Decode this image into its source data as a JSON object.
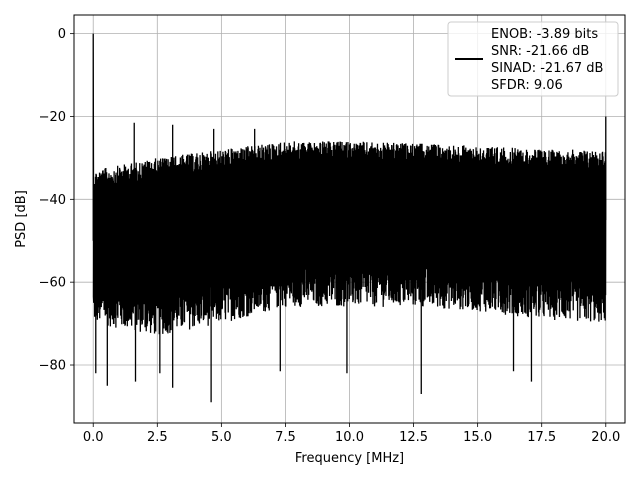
{
  "chart_data": {
    "type": "line",
    "xlabel": "Frequency [MHz]",
    "ylabel": "PSD [dB]",
    "xlim": [
      -0.75,
      20.75
    ],
    "ylim": [
      -94,
      4.5
    ],
    "xticks": [
      0.0,
      2.5,
      5.0,
      7.5,
      10.0,
      12.5,
      15.0,
      17.5,
      20.0
    ],
    "xtick_labels": [
      "0.0",
      "2.5",
      "5.0",
      "7.5",
      "10.0",
      "12.5",
      "15.0",
      "17.5",
      "20.0"
    ],
    "yticks": [
      0,
      -20,
      -40,
      -60,
      -80
    ],
    "ytick_labels": [
      "0",
      "−20",
      "−40",
      "−60",
      "−80"
    ],
    "grid": true,
    "legend_position": "top-right",
    "series": [
      {
        "color": "#000000",
        "description_points": {
          "dc_peak": [
            0.0,
            0.0
          ],
          "upper_envelope": [
            [
              0.0,
              -33
            ],
            [
              2.5,
              -30
            ],
            [
              5.0,
              -28
            ],
            [
              7.5,
              -26
            ],
            [
              10.0,
              -26
            ],
            [
              12.5,
              -26.5
            ],
            [
              15.0,
              -27
            ],
            [
              17.5,
              -28
            ],
            [
              20.0,
              -28
            ]
          ],
          "lower_envelope": [
            [
              0.0,
              -70
            ],
            [
              2.5,
              -73
            ],
            [
              5.0,
              -70
            ],
            [
              7.5,
              -66
            ],
            [
              10.0,
              -66
            ],
            [
              12.5,
              -66
            ],
            [
              15.0,
              -67
            ],
            [
              17.5,
              -69
            ],
            [
              20.0,
              -70
            ]
          ],
          "spurs": [
            [
              1.6,
              -21.5
            ],
            [
              3.1,
              -22
            ],
            [
              4.7,
              -23
            ],
            [
              6.3,
              -23
            ],
            [
              20.0,
              -20
            ]
          ],
          "dips": [
            [
              0.1,
              -82
            ],
            [
              0.55,
              -85
            ],
            [
              1.65,
              -84
            ],
            [
              2.6,
              -82
            ],
            [
              3.1,
              -85.5
            ],
            [
              4.6,
              -89
            ],
            [
              7.3,
              -81.5
            ],
            [
              9.9,
              -82
            ],
            [
              12.8,
              -87
            ],
            [
              16.4,
              -81.5
            ],
            [
              17.1,
              -84
            ]
          ]
        }
      }
    ],
    "legend": {
      "line1": "ENOB: -3.89 bits",
      "line2": "SNR: -21.66 dB",
      "line3": "SINAD: -21.67 dB",
      "line4": "SFDR: 9.06"
    }
  }
}
